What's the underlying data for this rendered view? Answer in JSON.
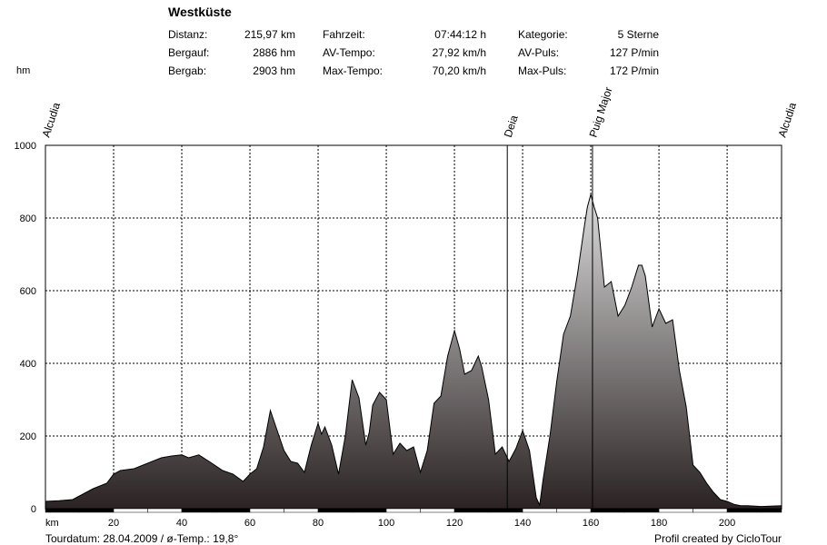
{
  "header": {
    "title": "Westküste",
    "stats": [
      {
        "label": "Distanz:",
        "value": "215,97 km"
      },
      {
        "label": "Bergauf:",
        "value": "2886 hm"
      },
      {
        "label": "Bergab:",
        "value": "2903 hm"
      },
      {
        "label": "Fahrzeit:",
        "value": "07:44:12 h"
      },
      {
        "label": "AV-Tempo:",
        "value": "27,92 km/h"
      },
      {
        "label": "Max-Tempo:",
        "value": "70,20 km/h"
      },
      {
        "label": "Kategorie:",
        "value": "5 Sterne"
      },
      {
        "label": "AV-Puls:",
        "value": "127 P/min"
      },
      {
        "label": "Max-Puls:",
        "value": "172 P/min"
      }
    ]
  },
  "footer": {
    "left": "Tourdatum: 28.04.2009  /  ø-Temp.: 19,8°",
    "right": "Profil created by CicloTour"
  },
  "colors": {
    "grid": "#000000",
    "profile_light": "#dcdcdc",
    "profile_dark": "#2a2223",
    "profile_line": "#000000"
  },
  "chart_data": {
    "type": "area",
    "xlabel": "km",
    "ylabel": "hm",
    "xlim": [
      0,
      215.97
    ],
    "ylim": [
      0,
      1000
    ],
    "xticks": [
      20,
      40,
      60,
      80,
      100,
      120,
      140,
      160,
      180,
      200
    ],
    "yticks": [
      0,
      200,
      400,
      600,
      800,
      1000
    ],
    "grid": true,
    "waypoints": [
      {
        "name": "Alcudia",
        "km": 0
      },
      {
        "name": "Deia",
        "km": 135.5
      },
      {
        "name": "Puig Major",
        "km": 160.5
      },
      {
        "name": "Alcudia",
        "km": 215.97
      }
    ],
    "series": [
      {
        "x": [
          0,
          4,
          8,
          10,
          14,
          18,
          20,
          22,
          26,
          30,
          34,
          37,
          40,
          42,
          45,
          48,
          52,
          55,
          58,
          60,
          62,
          64,
          66,
          68,
          70,
          72,
          74,
          76,
          78,
          80,
          81,
          82,
          84,
          86,
          88,
          90,
          92,
          94,
          95,
          96,
          98,
          100,
          102,
          104,
          106,
          108,
          110,
          112,
          114,
          116,
          118,
          120,
          121.5,
          123,
          125,
          127,
          128,
          130,
          132,
          134,
          136,
          138,
          140,
          142,
          144,
          145,
          146,
          148,
          150,
          152,
          154,
          156,
          158,
          159,
          160,
          161,
          162,
          164,
          166,
          168,
          170,
          172,
          174,
          175,
          176,
          178,
          180,
          182,
          184,
          186,
          188,
          190,
          192,
          194,
          196,
          198,
          200,
          202,
          204,
          206,
          210,
          215.97
        ],
        "y": [
          20,
          22,
          25,
          35,
          55,
          70,
          95,
          105,
          110,
          125,
          140,
          145,
          148,
          140,
          148,
          130,
          105,
          95,
          75,
          95,
          110,
          170,
          270,
          215,
          160,
          130,
          125,
          100,
          175,
          235,
          205,
          225,
          175,
          95,
          200,
          355,
          305,
          175,
          210,
          285,
          320,
          300,
          150,
          180,
          160,
          170,
          100,
          160,
          290,
          310,
          420,
          490,
          440,
          370,
          380,
          420,
          390,
          300,
          150,
          170,
          130,
          165,
          215,
          160,
          30,
          10,
          80,
          200,
          350,
          480,
          530,
          640,
          770,
          830,
          865,
          830,
          800,
          610,
          625,
          530,
          560,
          610,
          670,
          670,
          640,
          500,
          550,
          510,
          520,
          380,
          280,
          120,
          100,
          70,
          45,
          25,
          20,
          12,
          8,
          8,
          6,
          8
        ]
      }
    ]
  }
}
